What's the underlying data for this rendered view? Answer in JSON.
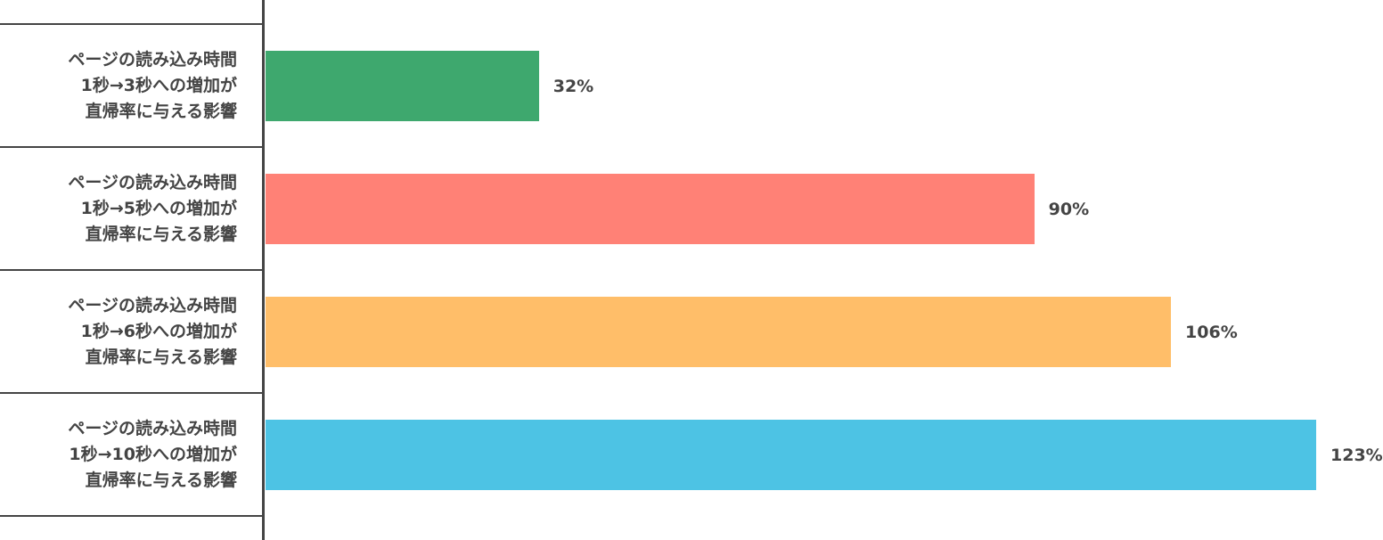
{
  "chart_data": {
    "type": "bar",
    "orientation": "horizontal",
    "categories": [
      "ページの読み込み時間\n1秒→3秒への増加が\n直帰率に与える影響",
      "ページの読み込み時間\n1秒→5秒への増加が\n直帰率に与える影響",
      "ページの読み込み時間\n1秒→6秒への増加が\n直帰率に与える影響",
      "ページの読み込み時間\n1秒→10秒への増加が\n直帰率に与える影響"
    ],
    "values": [
      32,
      90,
      106,
      123
    ],
    "value_labels": [
      "32%",
      "90%",
      "106%",
      "123%"
    ],
    "colors": [
      "#3ea86e",
      "#ff8176",
      "#ffbe69",
      "#4dc3e4"
    ],
    "unit": "%",
    "grid": false,
    "legend": "none"
  }
}
